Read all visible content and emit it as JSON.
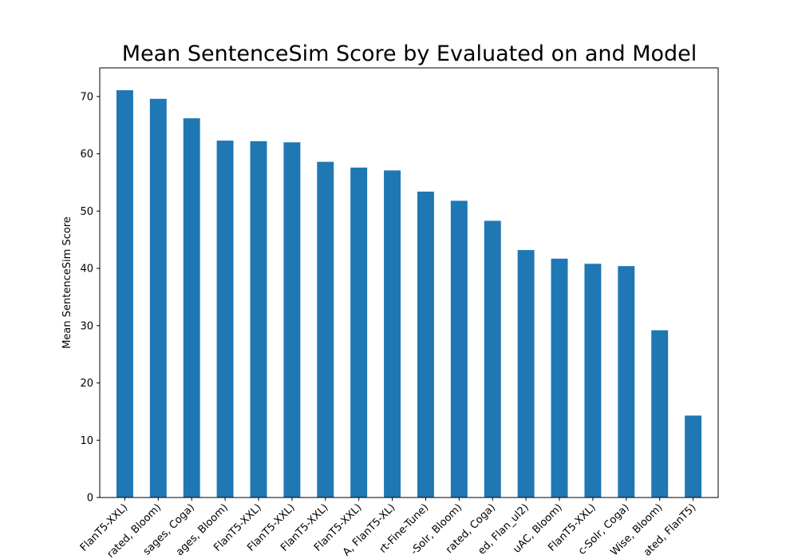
{
  "chart_data": {
    "type": "bar",
    "title": "Mean SentenceSim Score by Evaluated on and Model",
    "xlabel": "",
    "ylabel": "Mean SentenceSim Score",
    "ylim": [
      0,
      75
    ],
    "yticks": [
      0,
      10,
      20,
      30,
      40,
      50,
      60,
      70
    ],
    "grid": false,
    "legend": "none",
    "bar_color": "#1f77b4",
    "categories": [
      "FlanT5-XXL)",
      "rated, Bloom)",
      "sages, Coga)",
      "ages, Bloom)",
      "FlanT5-XXL)",
      "FlanT5-XXL)",
      "FlanT5-XXL)",
      "FlanT5-XXL)",
      "A, FlanT5-XL)",
      "rt-Fine-Tune)",
      "-Solr, Bloom)",
      "rated, Coga)",
      "ed, Flan_ul2)",
      "uAC, Bloom)",
      "FlanT5-XXL)",
      "c-Solr, Coga)",
      "Wise, Bloom)",
      "ated, FlanT5)"
    ],
    "values": [
      71.1,
      69.6,
      66.2,
      62.3,
      62.2,
      62.0,
      58.6,
      57.6,
      57.1,
      53.4,
      51.8,
      48.3,
      43.2,
      41.7,
      40.8,
      40.4,
      29.2,
      14.3
    ]
  }
}
